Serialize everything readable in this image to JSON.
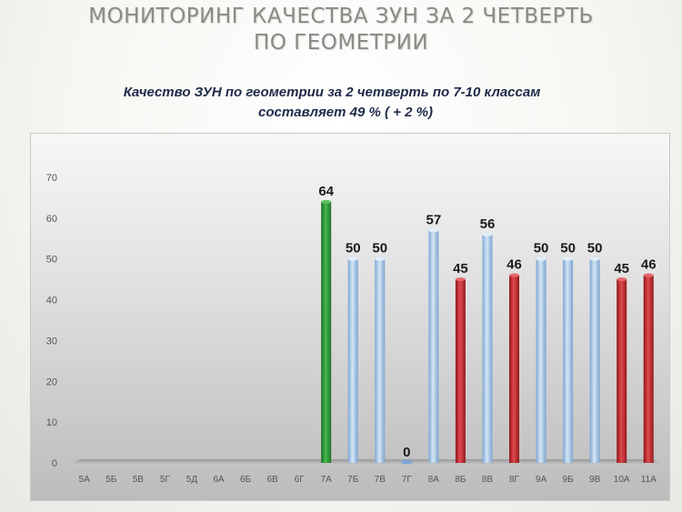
{
  "slide": {
    "title_line1": "МОНИТОРИНГ КАЧЕСТВА ЗУН ЗА 2  ЧЕТВЕРТЬ",
    "title_line2": "ПО  ГЕОМЕТРИИ",
    "subtitle_line1": "Качество ЗУН по геометрии  за 2 четверть  по 7-10 классам",
    "subtitle_line2": "составляет  49 % ( + 2 %)"
  },
  "colors": {
    "green": "#2e9a37",
    "blue": "#a9c6e6",
    "red": "#c82a2f"
  },
  "chart_data": {
    "type": "bar",
    "categories": [
      "5А",
      "5Б",
      "5В",
      "5Г",
      "5Д",
      "6А",
      "6Б",
      "6В",
      "6Г",
      "7А",
      "7Б",
      "7В",
      "7Г",
      "8А",
      "8Б",
      "8В",
      "8Г",
      "9А",
      "9Б",
      "9В",
      "10А",
      "11А"
    ],
    "values": [
      null,
      null,
      null,
      null,
      null,
      null,
      null,
      null,
      null,
      64,
      50,
      50,
      0,
      57,
      45,
      56,
      46,
      50,
      50,
      50,
      45,
      46
    ],
    "bar_colors": [
      "",
      "",
      "",
      "",
      "",
      "",
      "",
      "",
      "",
      "green",
      "blue",
      "blue",
      "blue",
      "blue",
      "red",
      "blue",
      "red",
      "blue",
      "blue",
      "blue",
      "red",
      "red"
    ],
    "data_labels": [
      "",
      "",
      "",
      "",
      "",
      "",
      "",
      "",
      "",
      "64",
      "50",
      "50",
      "0",
      "57",
      "45",
      "56",
      "46",
      "50",
      "50",
      "50",
      "45",
      "46"
    ],
    "y_ticks": [
      "0",
      "10",
      "20",
      "30",
      "40",
      "50",
      "60",
      "70"
    ],
    "ylim": [
      0,
      70
    ],
    "grid": false,
    "legend": false
  }
}
